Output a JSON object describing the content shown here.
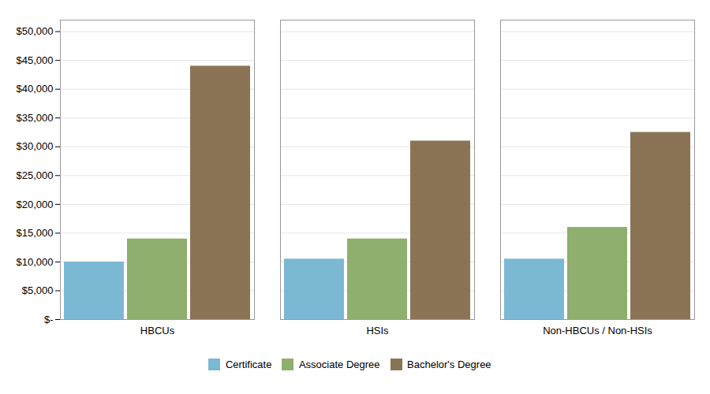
{
  "chart_data": {
    "type": "bar",
    "categories": [
      "HBCUs",
      "HSIs",
      "Non-HBCUs / Non-HSIs"
    ],
    "series": [
      {
        "name": "Certificate",
        "color": "#7BB8D4",
        "values": [
          10000,
          10500,
          10500
        ]
      },
      {
        "name": "Associate Degree",
        "color": "#8EAF6E",
        "values": [
          14000,
          14000,
          16000
        ]
      },
      {
        "name": "Bachelor's Degree",
        "color": "#8B7355",
        "values": [
          44000,
          31000,
          32500
        ]
      }
    ],
    "ylim": [
      0,
      52000
    ],
    "yticks": [
      {
        "value": 0,
        "label": "$-"
      },
      {
        "value": 5000,
        "label": "$5,000"
      },
      {
        "value": 10000,
        "label": "$10,000"
      },
      {
        "value": 15000,
        "label": "$15,000"
      },
      {
        "value": 20000,
        "label": "$20,000"
      },
      {
        "value": 25000,
        "label": "$25,000"
      },
      {
        "value": 30000,
        "label": "$30,000"
      },
      {
        "value": 35000,
        "label": "$35,000"
      },
      {
        "value": 40000,
        "label": "$40,000"
      },
      {
        "value": 45000,
        "label": "$45,000"
      },
      {
        "value": 50000,
        "label": "$50,000"
      }
    ],
    "grid": true,
    "legend": "bottom"
  }
}
